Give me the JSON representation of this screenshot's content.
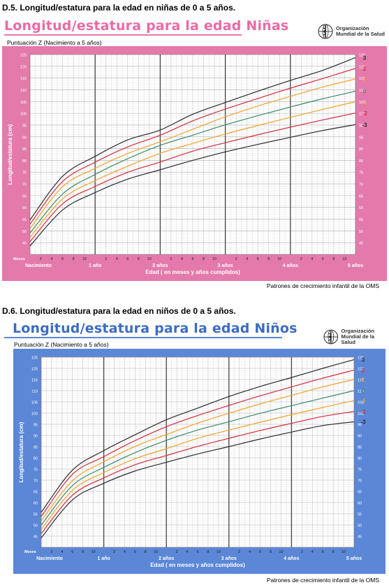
{
  "chart_data": [
    {
      "type": "line",
      "heading": "D.5. Longitud/estatura para la edad en niñas de 0 a 5 años.",
      "title": "Longitud/estatura para la edad Niñas",
      "subtitle": "Puntuación Z (Nacimiento a 5 años)",
      "org": [
        "Organización",
        "Mundial de la Salud"
      ],
      "ylabel": "Longitud/estatura (cm)",
      "xlabel": "Edad ( en meses y años cumplidos)",
      "x_unit_label": "Meses",
      "footer": "Patrones de crecimiento infantil de la OMS",
      "ylim": [
        40,
        125
      ],
      "y_ticks": [
        45,
        50,
        55,
        60,
        65,
        70,
        75,
        80,
        85,
        90,
        95,
        100,
        105,
        110,
        115,
        120,
        125
      ],
      "month_ticks": [
        "2",
        "4",
        "6",
        "8",
        "10"
      ],
      "year_labels": [
        "Nacimiento",
        "1 año",
        "2 años",
        "3 años",
        "4 años",
        "5 años"
      ],
      "grid": true,
      "theme": {
        "frame": "#e47aac",
        "frame_light": "#f2b6d0",
        "title_color": "#ea6aa5"
      },
      "x_months": [
        0,
        6,
        12,
        18,
        24,
        30,
        36,
        42,
        48,
        54,
        60
      ],
      "series": [
        {
          "name": "3",
          "color": "#2a2a2a",
          "values": [
            54.7,
            73.2,
            81.7,
            88.7,
            92.9,
            99.6,
            104.6,
            109.4,
            114.0,
            118.3,
            123.7
          ]
        },
        {
          "name": "2",
          "color": "#d42a3c",
          "values": [
            52.9,
            71.0,
            79.2,
            85.7,
            90.7,
            96.8,
            101.8,
            106.3,
            110.7,
            114.8,
            119.1
          ]
        },
        {
          "name": "1",
          "color": "#f2a228",
          "values": [
            51.0,
            68.8,
            76.6,
            82.9,
            87.9,
            93.2,
            98.5,
            103.1,
            107.2,
            111.2,
            114.6
          ]
        },
        {
          "name": "0",
          "color": "#3a8a6a",
          "values": [
            49.1,
            65.7,
            74.0,
            80.7,
            86.4,
            90.7,
            95.1,
            99.0,
            102.7,
            106.2,
            109.4
          ]
        },
        {
          "name": "-1",
          "color": "#f2a228",
          "values": [
            47.3,
            63.6,
            71.4,
            77.5,
            83.0,
            87.2,
            91.2,
            94.8,
            98.3,
            101.7,
            104.9
          ]
        },
        {
          "name": "-2",
          "color": "#d42a3c",
          "values": [
            45.4,
            61.5,
            68.9,
            74.9,
            79.3,
            83.9,
            87.5,
            90.9,
            94.1,
            97.2,
            100.1
          ]
        },
        {
          "name": "-3",
          "color": "#2a2a2a",
          "values": [
            43.6,
            58.9,
            66.3,
            72.0,
            76.0,
            80.0,
            83.6,
            86.8,
            89.8,
            92.7,
            95.2
          ]
        }
      ]
    },
    {
      "type": "line",
      "heading": "D.6. Longitud/estatura para la edad en niños de 0 a 5 años.",
      "title": "Longitud/estatura para la edad Niños",
      "subtitle": "Puntuación Z (Nacimiento a 5 años)",
      "org": [
        "Organización",
        "Mundial de la Salud"
      ],
      "ylabel": "Longitud/estatura (cm)",
      "xlabel": "Edad ( en meses y años cumplidos)",
      "x_unit_label": "Meses",
      "footer": "Patrones de crecimiento infantil de la OMS",
      "ylim": [
        40,
        125
      ],
      "y_ticks": [
        45,
        50,
        55,
        60,
        65,
        70,
        75,
        80,
        85,
        90,
        95,
        100,
        105,
        110,
        115,
        120,
        125
      ],
      "month_ticks": [
        "2",
        "4",
        "6",
        "8",
        "10"
      ],
      "year_labels": [
        "Nacimiento",
        "1 año",
        "2 años",
        "3 años",
        "4 años",
        "5 años"
      ],
      "grid": true,
      "theme": {
        "frame": "#5b87d6",
        "frame_light": "#a9c2ec",
        "title_color": "#3c6cc4"
      },
      "x_months": [
        0,
        6,
        12,
        18,
        24,
        30,
        36,
        42,
        48,
        54,
        60
      ],
      "series": [
        {
          "name": "3",
          "color": "#2a2a2a",
          "values": [
            55.6,
            74.5,
            83.2,
            90.3,
            97.0,
            102.2,
            107.4,
            111.9,
            115.9,
            120.0,
            123.9
          ]
        },
        {
          "name": "2",
          "color": "#d42a3c",
          "values": [
            53.7,
            72.6,
            80.5,
            87.7,
            93.9,
            98.9,
            103.4,
            107.7,
            111.7,
            115.6,
            119.2
          ]
        },
        {
          "name": "1",
          "color": "#f2a228",
          "values": [
            51.8,
            69.8,
            78.2,
            85.1,
            90.4,
            95.5,
            99.9,
            104.1,
            107.9,
            111.7,
            115.0
          ]
        },
        {
          "name": "0",
          "color": "#3a8a6a",
          "values": [
            49.9,
            67.6,
            75.7,
            82.3,
            87.8,
            92.4,
            96.1,
            99.9,
            103.3,
            106.7,
            110.0
          ]
        },
        {
          "name": "-1",
          "color": "#f2a228",
          "values": [
            48.0,
            65.5,
            73.4,
            79.6,
            84.1,
            88.7,
            92.4,
            95.9,
            99.3,
            102.5,
            105.6
          ]
        },
        {
          "name": "-2",
          "color": "#d42a3c",
          "values": [
            46.1,
            63.3,
            71.0,
            76.9,
            81.0,
            85.1,
            88.7,
            92.2,
            95.4,
            98.5,
            100.7
          ]
        },
        {
          "name": "-3",
          "color": "#2a2a2a",
          "values": [
            44.2,
            61.2,
            68.6,
            74.1,
            78.0,
            81.7,
            85.0,
            88.4,
            91.5,
            94.4,
            96.1
          ]
        }
      ]
    }
  ]
}
